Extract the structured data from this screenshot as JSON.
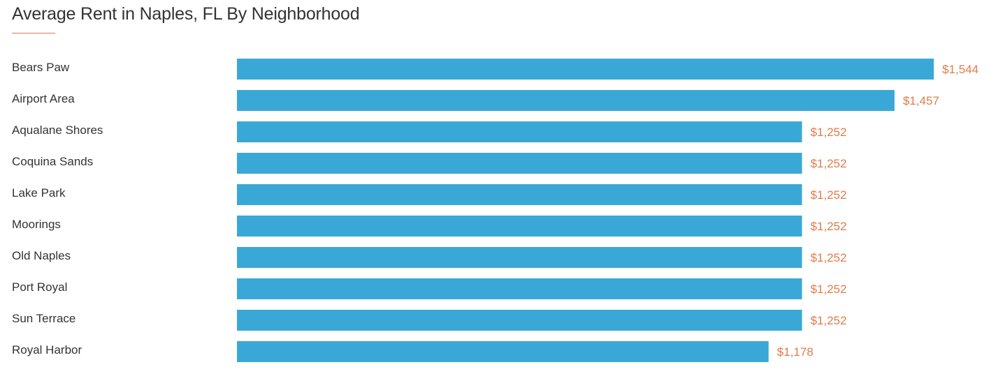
{
  "chart_data": {
    "type": "bar",
    "orientation": "horizontal",
    "title": "Average Rent in Naples, FL By Neighborhood",
    "xlabel": "",
    "ylabel": "",
    "grid": false,
    "legend": "none",
    "categories": [
      "Bears Paw",
      "Airport Area",
      "Aqualane Shores",
      "Coquina Sands",
      "Lake Park",
      "Moorings",
      "Old Naples",
      "Port Royal",
      "Sun Terrace",
      "Royal Harbor"
    ],
    "values": [
      1544,
      1457,
      1252,
      1252,
      1252,
      1252,
      1252,
      1252,
      1252,
      1178
    ],
    "value_labels": [
      "$1,544",
      "$1,457",
      "$1,252",
      "$1,252",
      "$1,252",
      "$1,252",
      "$1,252",
      "$1,252",
      "$1,252",
      "$1,178"
    ],
    "bar_color": "#3aa8d6",
    "value_label_color": "#e07b4c",
    "accent_color": "#e07b4c"
  }
}
